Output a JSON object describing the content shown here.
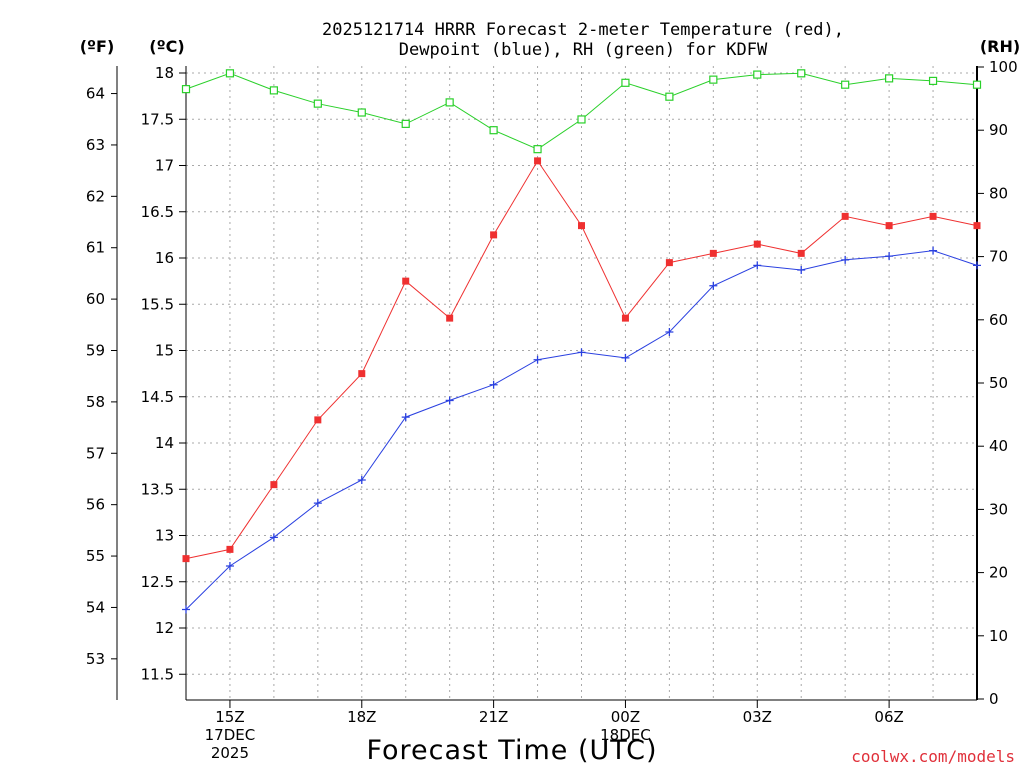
{
  "chart_data": {
    "type": "line",
    "title_lines": [
      "2025121714 HRRR Forecast 2-meter Temperature (red),",
      "Dewpoint (blue), RH (green) for KDFW"
    ],
    "xlabel": "Forecast Time (UTC)",
    "credit": "coolwx.com/models",
    "units": {
      "fahrenheit": "(ºF)",
      "celsius": "(ºC)",
      "rh": "(RH)"
    },
    "x_hours": [
      14,
      15,
      16,
      17,
      18,
      19,
      20,
      21,
      22,
      23,
      24,
      25,
      26,
      27,
      28,
      29,
      30,
      31,
      32
    ],
    "x_range": [
      14,
      32
    ],
    "x_ticks": [
      {
        "hour": 15,
        "lines": [
          "15Z",
          "17DEC",
          "2025"
        ]
      },
      {
        "hour": 18,
        "lines": [
          "18Z"
        ]
      },
      {
        "hour": 21,
        "lines": [
          "21Z"
        ]
      },
      {
        "hour": 24,
        "lines": [
          "00Z",
          "18DEC"
        ]
      },
      {
        "hour": 27,
        "lines": [
          "03Z"
        ]
      },
      {
        "hour": 30,
        "lines": [
          "06Z"
        ]
      }
    ],
    "celsius_axis": {
      "range": [
        11.3,
        18.1
      ],
      "ticks": [
        "11.5",
        "12",
        "12.5",
        "13",
        "13.5",
        "14",
        "14.5",
        "15",
        "15.5",
        "16",
        "16.5",
        "17",
        "17.5",
        "18"
      ]
    },
    "fahrenheit_axis": {
      "ticks": [
        "53",
        "54",
        "55",
        "56",
        "57",
        "58",
        "59",
        "60",
        "61",
        "62",
        "63",
        "64"
      ]
    },
    "rh_axis": {
      "range": [
        0,
        100
      ],
      "ticks": [
        "0",
        "10",
        "20",
        "30",
        "40",
        "50",
        "60",
        "70",
        "80",
        "90",
        "100"
      ]
    },
    "series": [
      {
        "name": "Temperature",
        "axis": "celsius",
        "color": "#ef3030",
        "marker": "filled-square",
        "values": [
          12.75,
          12.85,
          13.55,
          14.25,
          14.75,
          15.75,
          15.35,
          16.25,
          17.05,
          16.35,
          15.35,
          15.95,
          16.05,
          16.15,
          16.05,
          16.45,
          16.35,
          16.45,
          16.35
        ]
      },
      {
        "name": "Dewpoint",
        "axis": "celsius",
        "color": "#2a40e0",
        "marker": "plus",
        "values": [
          12.2,
          12.67,
          12.98,
          13.35,
          13.6,
          14.28,
          14.46,
          14.63,
          14.9,
          14.98,
          14.92,
          15.2,
          15.7,
          15.92,
          15.87,
          15.98,
          16.02,
          16.08,
          15.92
        ]
      },
      {
        "name": "RH",
        "axis": "rh",
        "color": "#2ad02a",
        "marker": "open-square",
        "values": [
          96.5,
          99.0,
          96.3,
          94.2,
          92.8,
          91.0,
          94.4,
          90.0,
          87.0,
          91.7,
          97.5,
          95.3,
          98.0,
          98.8,
          99.0,
          97.2,
          98.2,
          97.8,
          97.2
        ]
      }
    ]
  }
}
